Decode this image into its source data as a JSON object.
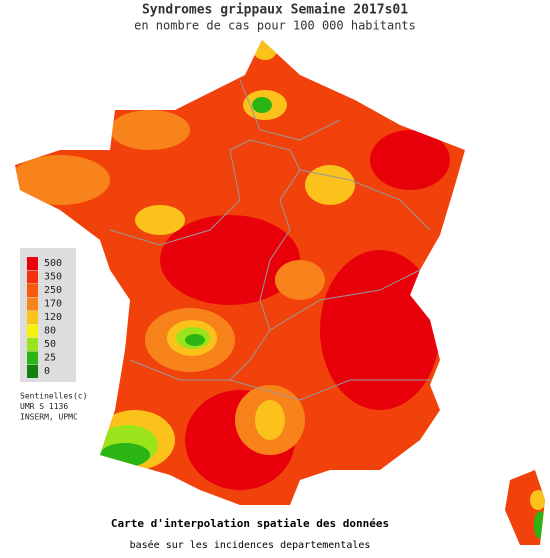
{
  "header": {
    "title": "Syndromes grippaux Semaine 2017s01",
    "subtitle": "en nombre de cas pour 100 000 habitants"
  },
  "legend": {
    "items": [
      {
        "label": 500,
        "color": "#e8000b"
      },
      {
        "label": 350,
        "color": "#f2320c"
      },
      {
        "label": 250,
        "color": "#f55a0f"
      },
      {
        "label": 170,
        "color": "#f8831a"
      },
      {
        "label": 120,
        "color": "#fbc21c"
      },
      {
        "label": 80,
        "color": "#f4f20a"
      },
      {
        "label": 50,
        "color": "#9be31a"
      },
      {
        "label": 25,
        "color": "#2bb515"
      },
      {
        "label": 0,
        "color": "#137f10"
      }
    ]
  },
  "credits": [
    "Sentinelles(c)",
    "UMR S 1136",
    "INSERM, UPMC"
  ],
  "footer": {
    "title": "Carte d'interpolation spatiale des données",
    "subtitle": "basée sur les incidences departementales"
  }
}
